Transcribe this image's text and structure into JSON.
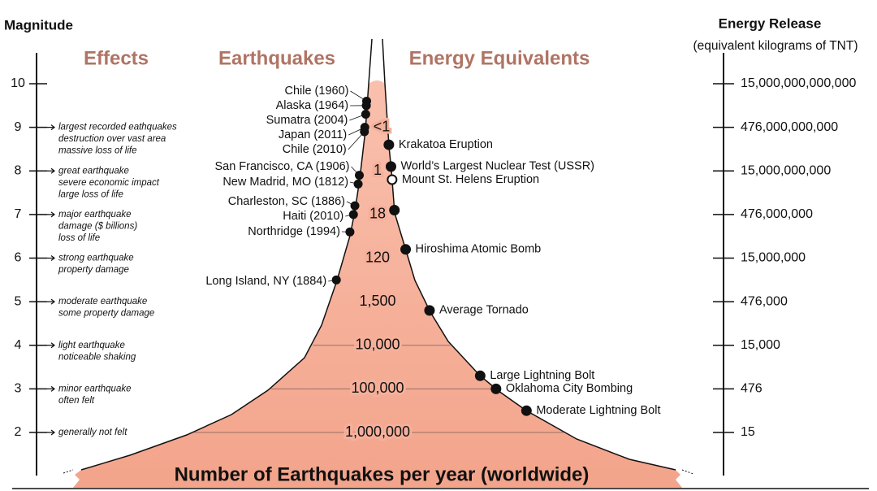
{
  "header": {
    "left_axis_title": "Magnitude",
    "right_axis_title": "Energy Release",
    "right_axis_subtitle": "(equivalent kilograms of TNT)",
    "effects_heading": "Effects",
    "earthquakes_heading": "Earthquakes",
    "energy_heading": "Energy Equivalents"
  },
  "magnitudes": [
    {
      "value": 10,
      "energy": "15,000,000,000,000"
    },
    {
      "value": 9,
      "energy": "476,000,000,000",
      "frequency": "<1",
      "effects": [
        "largest recorded eathquakes",
        "destruction over vast area",
        "massive loss of life"
      ]
    },
    {
      "value": 8,
      "energy": "15,000,000,000",
      "frequency": "1",
      "effects": [
        "great earthquake",
        "severe economic impact",
        "large loss of life"
      ]
    },
    {
      "value": 7,
      "energy": "476,000,000",
      "frequency": "18",
      "effects": [
        "major earthquake",
        "damage ($ billions)",
        "loss of life"
      ]
    },
    {
      "value": 6,
      "energy": "15,000,000",
      "frequency": "120",
      "effects": [
        "strong earthquake",
        "property damage"
      ]
    },
    {
      "value": 5,
      "energy": "476,000",
      "frequency": "1,500",
      "effects": [
        "moderate earthquake",
        "some property damage"
      ]
    },
    {
      "value": 4,
      "energy": "15,000",
      "frequency": "10,000",
      "effects": [
        "light earthquake",
        "noticeable shaking"
      ]
    },
    {
      "value": 3,
      "energy": "476",
      "frequency": "100,000",
      "effects": [
        "minor earthquake",
        "often felt"
      ]
    },
    {
      "value": 2,
      "energy": "15",
      "frequency": "1,000,000",
      "effects": [
        "generally not felt"
      ]
    }
  ],
  "earthquakes": [
    {
      "label": "Chile (1960)",
      "magnitude": 9.6
    },
    {
      "label": "Alaska (1964)",
      "magnitude": 9.5
    },
    {
      "label": "Sumatra (2004)",
      "magnitude": 9.3
    },
    {
      "label": "Japan (2011)",
      "magnitude": 9.0
    },
    {
      "label": "Chile (2010)",
      "magnitude": 8.9
    },
    {
      "label": "San Francisco, CA (1906)",
      "magnitude": 7.9
    },
    {
      "label": "New Madrid, MO (1812)",
      "magnitude": 7.7
    },
    {
      "label": "Charleston, SC (1886)",
      "magnitude": 7.2
    },
    {
      "label": "Haiti (2010)",
      "magnitude": 7.0
    },
    {
      "label": "Northridge (1994)",
      "magnitude": 6.6
    },
    {
      "label": "Long Island, NY (1884)",
      "magnitude": 5.5
    }
  ],
  "energy_equivalents": [
    {
      "label": "Krakatoa Eruption",
      "magnitude": 8.6
    },
    {
      "label": "World’s Largest Nuclear Test (USSR)",
      "magnitude": 8.1
    },
    {
      "label": "Mount St. Helens Eruption",
      "magnitude": 7.8,
      "hollow": true
    },
    {
      "label": null,
      "magnitude": 7.1
    },
    {
      "label": "Hiroshima Atomic Bomb",
      "magnitude": 6.2
    },
    {
      "label": "Average Tornado",
      "magnitude": 4.8
    },
    {
      "label": "Large Lightning Bolt",
      "magnitude": 3.3
    },
    {
      "label": "Oklahoma City Bombing",
      "magnitude": 3.0
    },
    {
      "label": "Moderate Lightning Bolt",
      "magnitude": 2.5
    }
  ],
  "footer": "Number of Earthquakes per year (worldwide)"
}
